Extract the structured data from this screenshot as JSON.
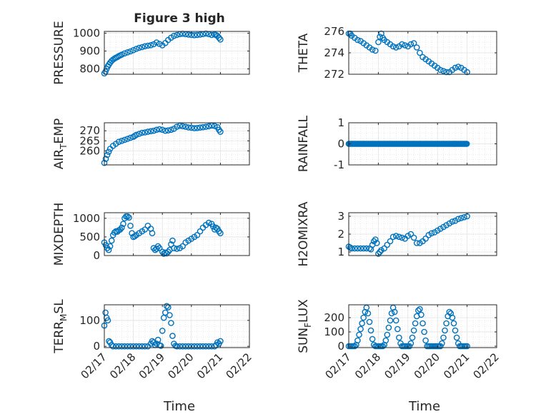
{
  "figure": {
    "title": "Figure 3 high",
    "xlabel_left": "Time",
    "xlabel_right": "Time",
    "x_ticks": [
      "02/17",
      "02/18",
      "02/19",
      "02/20",
      "02/21",
      "02/22"
    ]
  },
  "chart_data": [
    {
      "type": "scatter",
      "id": "pressure",
      "ylabel": "PRESSURE",
      "ylim": [
        770,
        1010
      ],
      "yticks": [
        800,
        900,
        1000
      ],
      "xlim": [
        0,
        5
      ],
      "color": "#0072bd",
      "marker": "circle-open",
      "grid": true,
      "x": [
        0.0,
        0.04,
        0.08,
        0.12,
        0.16,
        0.2,
        0.25,
        0.3,
        0.35,
        0.4,
        0.45,
        0.5,
        0.55,
        0.6,
        0.7,
        0.8,
        0.9,
        1.0,
        1.1,
        1.2,
        1.3,
        1.4,
        1.5,
        1.6,
        1.7,
        1.8,
        1.9,
        2.0,
        2.1,
        2.2,
        2.3,
        2.4,
        2.5,
        2.6,
        2.7,
        2.8,
        2.9,
        3.0,
        3.1,
        3.2,
        3.3,
        3.4,
        3.5,
        3.6,
        3.7,
        3.8,
        3.85,
        3.9,
        3.95,
        4.0
      ],
      "y": [
        775,
        785,
        800,
        815,
        825,
        835,
        845,
        852,
        858,
        863,
        867,
        872,
        876,
        880,
        887,
        893,
        898,
        905,
        912,
        918,
        922,
        927,
        930,
        933,
        938,
        948,
        940,
        932,
        945,
        962,
        975,
        985,
        990,
        995,
        997,
        995,
        992,
        990,
        989,
        990,
        992,
        995,
        998,
        995,
        990,
        993,
        990,
        985,
        975,
        965
      ]
    },
    {
      "type": "scatter",
      "id": "theta",
      "ylabel": "THETA",
      "ylim": [
        272,
        276
      ],
      "yticks": [
        272,
        274,
        276
      ],
      "xlim": [
        0,
        5
      ],
      "color": "#0072bd",
      "marker": "circle-open",
      "grid": true,
      "x": [
        0.0,
        0.05,
        0.1,
        0.2,
        0.3,
        0.4,
        0.5,
        0.6,
        0.7,
        0.8,
        0.9,
        1.0,
        1.05,
        1.1,
        1.15,
        1.2,
        1.3,
        1.4,
        1.5,
        1.6,
        1.7,
        1.8,
        1.9,
        2.0,
        2.1,
        2.2,
        2.3,
        2.4,
        2.5,
        2.6,
        2.7,
        2.8,
        2.9,
        3.0,
        3.1,
        3.2,
        3.3,
        3.4,
        3.5,
        3.6,
        3.7,
        3.8,
        3.9,
        4.0
      ],
      "y": [
        275.8,
        275.8,
        275.6,
        275.4,
        275.2,
        275.1,
        274.9,
        274.7,
        274.5,
        274.3,
        274.2,
        275.0,
        275.5,
        275.8,
        275.4,
        275.2,
        275.0,
        274.8,
        274.6,
        274.5,
        274.6,
        274.8,
        274.7,
        274.6,
        274.8,
        274.9,
        274.5,
        274.0,
        273.6,
        273.4,
        273.2,
        273.0,
        272.8,
        272.6,
        272.4,
        272.3,
        272.2,
        272.2,
        272.4,
        272.6,
        272.7,
        272.6,
        272.4,
        272.2
      ]
    },
    {
      "type": "scatter",
      "id": "air_temp",
      "ylabel": "AIR",
      "ylabel_sub": "T",
      "ylabel_rest": "EMP",
      "ylim": [
        253,
        274
      ],
      "yticks": [
        260,
        265,
        270
      ],
      "xlim": [
        0,
        5
      ],
      "color": "#0072bd",
      "marker": "circle-open",
      "grid": true,
      "x": [
        0.0,
        0.05,
        0.1,
        0.15,
        0.2,
        0.3,
        0.4,
        0.5,
        0.6,
        0.7,
        0.8,
        0.9,
        1.0,
        1.05,
        1.1,
        1.2,
        1.3,
        1.4,
        1.5,
        1.6,
        1.7,
        1.8,
        1.9,
        2.0,
        2.1,
        2.2,
        2.3,
        2.4,
        2.5,
        2.6,
        2.7,
        2.8,
        2.9,
        3.0,
        3.1,
        3.2,
        3.3,
        3.4,
        3.5,
        3.6,
        3.7,
        3.8,
        3.9,
        3.95,
        4.0
      ],
      "y": [
        254,
        256,
        258,
        259.5,
        261,
        262.5,
        263.5,
        264.5,
        265,
        265.5,
        266,
        266.5,
        267,
        267.5,
        268,
        268.5,
        269,
        269.2,
        269.5,
        269.8,
        270,
        270.5,
        270.8,
        270.5,
        270,
        270.2,
        270.5,
        271,
        272,
        272.5,
        272.3,
        272,
        271.7,
        271.5,
        271.3,
        271.4,
        271.6,
        271.8,
        272,
        272.3,
        272.6,
        272.4,
        271.8,
        270.5,
        269.5
      ]
    },
    {
      "type": "scatter",
      "id": "rainfall",
      "ylabel": "RAINFALL",
      "ylim": [
        -1,
        1
      ],
      "yticks": [
        -1,
        0,
        1
      ],
      "xlim": [
        0,
        5
      ],
      "color": "#0072bd",
      "marker": "circle-open",
      "grid": true,
      "x_range": [
        0,
        4
      ],
      "x_step": 0.03,
      "y_const": 0
    },
    {
      "type": "scatter",
      "id": "mixdepth",
      "ylabel": "MIXDEPTH",
      "ylim": [
        0,
        1150
      ],
      "yticks": [
        0,
        500,
        1000
      ],
      "xlim": [
        0,
        5
      ],
      "color": "#0072bd",
      "marker": "circle-open",
      "grid": true,
      "x": [
        0.0,
        0.05,
        0.1,
        0.15,
        0.2,
        0.25,
        0.3,
        0.35,
        0.4,
        0.45,
        0.5,
        0.55,
        0.6,
        0.65,
        0.7,
        0.75,
        0.8,
        0.85,
        0.9,
        0.95,
        1.0,
        1.05,
        1.1,
        1.2,
        1.3,
        1.4,
        1.5,
        1.6,
        1.65,
        1.7,
        1.75,
        1.8,
        1.85,
        1.9,
        2.0,
        2.05,
        2.1,
        2.15,
        2.2,
        2.25,
        2.3,
        2.35,
        2.4,
        2.5,
        2.6,
        2.7,
        2.8,
        2.9,
        3.0,
        3.1,
        3.2,
        3.3,
        3.4,
        3.5,
        3.6,
        3.7,
        3.75,
        3.8,
        3.85,
        3.9,
        3.95,
        4.0
      ],
      "y": [
        350,
        280,
        200,
        150,
        250,
        400,
        550,
        620,
        650,
        640,
        680,
        700,
        750,
        850,
        1000,
        1050,
        1050,
        1020,
        800,
        600,
        500,
        520,
        550,
        600,
        650,
        700,
        800,
        720,
        600,
        200,
        150,
        180,
        250,
        200,
        100,
        50,
        80,
        60,
        100,
        150,
        300,
        400,
        200,
        180,
        200,
        250,
        350,
        400,
        450,
        500,
        550,
        650,
        750,
        820,
        880,
        850,
        780,
        700,
        750,
        720,
        650,
        600
      ]
    },
    {
      "type": "scatter",
      "id": "h2omixra",
      "ylabel": "H2OMIXRA",
      "ylim": [
        0.8,
        3.2
      ],
      "yticks": [
        1,
        2,
        3
      ],
      "xlim": [
        0,
        5
      ],
      "color": "#0072bd",
      "marker": "circle-open",
      "grid": true,
      "x": [
        0.0,
        0.05,
        0.1,
        0.2,
        0.3,
        0.4,
        0.5,
        0.6,
        0.7,
        0.75,
        0.8,
        0.85,
        0.9,
        0.95,
        1.0,
        1.05,
        1.1,
        1.2,
        1.3,
        1.4,
        1.5,
        1.6,
        1.7,
        1.8,
        1.9,
        2.0,
        2.1,
        2.2,
        2.3,
        2.4,
        2.5,
        2.6,
        2.7,
        2.8,
        2.9,
        3.0,
        3.1,
        3.2,
        3.3,
        3.4,
        3.5,
        3.6,
        3.7,
        3.8,
        3.9,
        4.0
      ],
      "y": [
        1.3,
        1.25,
        1.2,
        1.2,
        1.2,
        1.2,
        1.2,
        1.2,
        1.2,
        1.15,
        1.4,
        1.6,
        1.7,
        1.5,
        0.9,
        1.0,
        1.1,
        1.2,
        1.4,
        1.6,
        1.85,
        1.9,
        1.85,
        1.8,
        1.75,
        1.9,
        2.0,
        1.8,
        1.5,
        1.5,
        1.6,
        1.75,
        1.95,
        2.05,
        2.1,
        2.2,
        2.3,
        2.4,
        2.5,
        2.6,
        2.7,
        2.75,
        2.85,
        2.9,
        2.95,
        3.0
      ]
    },
    {
      "type": "scatter",
      "id": "terr_msl",
      "ylabel": "TERR",
      "ylabel_sub": "M",
      "ylabel_rest": "SL",
      "ylim": [
        -5,
        160
      ],
      "yticks": [
        0,
        100
      ],
      "xlim": [
        0,
        5
      ],
      "color": "#0072bd",
      "marker": "circle-open",
      "grid": true,
      "x": [
        0.0,
        0.04,
        0.08,
        0.12,
        0.16,
        0.2,
        0.25,
        0.3,
        0.4,
        0.5,
        0.6,
        0.7,
        0.8,
        0.9,
        1.0,
        1.1,
        1.2,
        1.3,
        1.4,
        1.5,
        1.6,
        1.65,
        1.7,
        1.75,
        1.8,
        1.85,
        1.9,
        1.95,
        2.0,
        2.05,
        2.1,
        2.15,
        2.2,
        2.25,
        2.3,
        2.35,
        2.4,
        2.45,
        2.5,
        2.6,
        2.7,
        2.8,
        2.9,
        3.0,
        3.1,
        3.2,
        3.3,
        3.4,
        3.5,
        3.6,
        3.7,
        3.8,
        3.85,
        3.9,
        3.95,
        4.0
      ],
      "y": [
        80,
        130,
        110,
        100,
        20,
        15,
        5,
        0,
        0,
        0,
        0,
        0,
        0,
        0,
        0,
        0,
        0,
        0,
        0,
        0,
        10,
        20,
        15,
        5,
        10,
        25,
        5,
        2,
        60,
        110,
        130,
        155,
        150,
        120,
        90,
        40,
        10,
        2,
        0,
        0,
        0,
        0,
        0,
        0,
        0,
        0,
        0,
        0,
        0,
        0,
        0,
        0,
        5,
        15,
        10,
        20
      ]
    },
    {
      "type": "scatter",
      "id": "sun_flux",
      "ylabel": "SUN",
      "ylabel_sub": "F",
      "ylabel_rest": "LUX",
      "ylim": [
        -10,
        290
      ],
      "yticks": [
        0,
        100,
        200
      ],
      "xlim": [
        0,
        5
      ],
      "color": "#0072bd",
      "marker": "circle-open",
      "grid": true,
      "x": [
        0.0,
        0.05,
        0.1,
        0.15,
        0.2,
        0.25,
        0.3,
        0.35,
        0.4,
        0.45,
        0.5,
        0.55,
        0.6,
        0.65,
        0.7,
        0.75,
        0.8,
        0.85,
        0.9,
        0.95,
        1.0,
        1.05,
        1.1,
        1.15,
        1.2,
        1.25,
        1.3,
        1.35,
        1.4,
        1.45,
        1.5,
        1.55,
        1.6,
        1.65,
        1.7,
        1.75,
        1.8,
        1.85,
        1.9,
        1.95,
        2.0,
        2.05,
        2.1,
        2.15,
        2.2,
        2.25,
        2.3,
        2.35,
        2.4,
        2.45,
        2.5,
        2.55,
        2.6,
        2.65,
        2.7,
        2.75,
        2.8,
        2.85,
        2.9,
        2.95,
        3.0,
        3.05,
        3.1,
        3.15,
        3.2,
        3.25,
        3.3,
        3.35,
        3.4,
        3.45,
        3.5,
        3.55,
        3.6,
        3.65,
        3.7,
        3.75,
        3.8,
        3.85,
        3.9,
        3.95,
        4.0
      ],
      "y": [
        0,
        0,
        0,
        0,
        0,
        10,
        40,
        80,
        120,
        160,
        200,
        240,
        270,
        230,
        170,
        110,
        50,
        10,
        0,
        0,
        0,
        0,
        0,
        0,
        10,
        40,
        80,
        130,
        180,
        230,
        270,
        240,
        180,
        120,
        60,
        20,
        0,
        0,
        0,
        0,
        0,
        0,
        20,
        60,
        110,
        160,
        210,
        250,
        260,
        220,
        160,
        100,
        40,
        0,
        0,
        0,
        0,
        0,
        0,
        0,
        0,
        0,
        0,
        20,
        60,
        110,
        160,
        210,
        240,
        230,
        200,
        160,
        110,
        60,
        20,
        0,
        0,
        0,
        0,
        0,
        0
      ]
    }
  ]
}
